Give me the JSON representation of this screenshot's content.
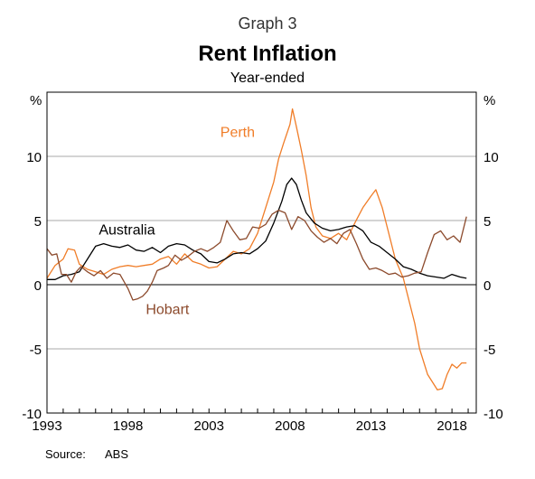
{
  "header": {
    "graph_label": "Graph 3",
    "title": "Rent Inflation",
    "subtitle": "Year-ended"
  },
  "footer": {
    "source_label": "Source:",
    "source_value": "ABS"
  },
  "chart_data": {
    "type": "line",
    "title": "Rent Inflation",
    "subtitle": "Year-ended",
    "y_unit_left": "%",
    "y_unit_right": "%",
    "xlim": [
      1993,
      2019.5
    ],
    "ylim": [
      -10,
      15
    ],
    "x_ticks": [
      1993,
      1998,
      2003,
      2008,
      2013,
      2018
    ],
    "y_ticks": [
      -10,
      -5,
      0,
      5,
      10
    ],
    "grid": true,
    "series": [
      {
        "name": "Perth",
        "color": "#f07d28",
        "points": [
          [
            1993.0,
            0.5
          ],
          [
            1993.5,
            1.5
          ],
          [
            1994.0,
            2.0
          ],
          [
            1994.3,
            2.8
          ],
          [
            1994.7,
            2.7
          ],
          [
            1995.0,
            1.6
          ],
          [
            1995.5,
            1.2
          ],
          [
            1996.0,
            1.0
          ],
          [
            1996.5,
            0.8
          ],
          [
            1997.0,
            1.2
          ],
          [
            1997.5,
            1.4
          ],
          [
            1998.0,
            1.5
          ],
          [
            1998.5,
            1.4
          ],
          [
            1999.0,
            1.5
          ],
          [
            1999.5,
            1.6
          ],
          [
            2000.0,
            2.0
          ],
          [
            2000.5,
            2.2
          ],
          [
            2001.0,
            1.6
          ],
          [
            2001.5,
            2.4
          ],
          [
            2002.0,
            1.8
          ],
          [
            2002.5,
            1.6
          ],
          [
            2003.0,
            1.3
          ],
          [
            2003.5,
            1.4
          ],
          [
            2004.0,
            2.0
          ],
          [
            2004.5,
            2.6
          ],
          [
            2005.0,
            2.4
          ],
          [
            2005.5,
            2.8
          ],
          [
            2006.0,
            4.0
          ],
          [
            2006.5,
            6.0
          ],
          [
            2007.0,
            8.0
          ],
          [
            2007.3,
            9.8
          ],
          [
            2007.6,
            11.0
          ],
          [
            2008.0,
            12.5
          ],
          [
            2008.15,
            13.7
          ],
          [
            2008.4,
            12.3
          ],
          [
            2008.7,
            10.5
          ],
          [
            2009.0,
            8.5
          ],
          [
            2009.3,
            6.0
          ],
          [
            2009.6,
            4.5
          ],
          [
            2010.0,
            3.8
          ],
          [
            2010.5,
            3.6
          ],
          [
            2011.0,
            4.0
          ],
          [
            2011.5,
            3.5
          ],
          [
            2012.0,
            4.8
          ],
          [
            2012.5,
            6.0
          ],
          [
            2013.0,
            6.9
          ],
          [
            2013.3,
            7.4
          ],
          [
            2013.7,
            6.0
          ],
          [
            2014.0,
            4.5
          ],
          [
            2014.5,
            2.0
          ],
          [
            2015.0,
            0.5
          ],
          [
            2015.3,
            -1.0
          ],
          [
            2015.7,
            -3.0
          ],
          [
            2016.0,
            -5.0
          ],
          [
            2016.5,
            -7.0
          ],
          [
            2016.8,
            -7.6
          ],
          [
            2017.1,
            -8.2
          ],
          [
            2017.4,
            -8.1
          ],
          [
            2017.7,
            -7.0
          ],
          [
            2018.0,
            -6.2
          ],
          [
            2018.3,
            -6.5
          ],
          [
            2018.6,
            -6.1
          ],
          [
            2018.9,
            -6.1
          ]
        ]
      },
      {
        "name": "Australia",
        "color": "#000000",
        "points": [
          [
            1993.0,
            0.4
          ],
          [
            1993.5,
            0.4
          ],
          [
            1994.0,
            0.7
          ],
          [
            1994.5,
            0.8
          ],
          [
            1995.0,
            1.0
          ],
          [
            1995.5,
            2.0
          ],
          [
            1996.0,
            3.0
          ],
          [
            1996.5,
            3.2
          ],
          [
            1997.0,
            3.0
          ],
          [
            1997.5,
            2.9
          ],
          [
            1998.0,
            3.1
          ],
          [
            1998.5,
            2.7
          ],
          [
            1999.0,
            2.6
          ],
          [
            1999.5,
            2.9
          ],
          [
            2000.0,
            2.5
          ],
          [
            2000.5,
            3.0
          ],
          [
            2001.0,
            3.2
          ],
          [
            2001.5,
            3.1
          ],
          [
            2002.0,
            2.7
          ],
          [
            2002.5,
            2.4
          ],
          [
            2003.0,
            1.8
          ],
          [
            2003.5,
            1.7
          ],
          [
            2004.0,
            2.0
          ],
          [
            2004.5,
            2.4
          ],
          [
            2005.0,
            2.5
          ],
          [
            2005.5,
            2.4
          ],
          [
            2006.0,
            2.8
          ],
          [
            2006.5,
            3.4
          ],
          [
            2007.0,
            4.8
          ],
          [
            2007.5,
            6.5
          ],
          [
            2007.8,
            7.8
          ],
          [
            2008.1,
            8.3
          ],
          [
            2008.4,
            7.8
          ],
          [
            2008.7,
            6.6
          ],
          [
            2009.0,
            5.6
          ],
          [
            2009.5,
            4.8
          ],
          [
            2010.0,
            4.4
          ],
          [
            2010.5,
            4.2
          ],
          [
            2011.0,
            4.3
          ],
          [
            2011.5,
            4.5
          ],
          [
            2012.0,
            4.6
          ],
          [
            2012.5,
            4.2
          ],
          [
            2013.0,
            3.3
          ],
          [
            2013.5,
            3.0
          ],
          [
            2014.0,
            2.5
          ],
          [
            2014.5,
            2.0
          ],
          [
            2015.0,
            1.4
          ],
          [
            2015.5,
            1.2
          ],
          [
            2016.0,
            0.9
          ],
          [
            2016.5,
            0.7
          ],
          [
            2017.0,
            0.6
          ],
          [
            2017.5,
            0.5
          ],
          [
            2018.0,
            0.8
          ],
          [
            2018.5,
            0.6
          ],
          [
            2018.9,
            0.5
          ]
        ]
      },
      {
        "name": "Hobart",
        "color": "#8c4a2c",
        "points": [
          [
            1993.0,
            2.8
          ],
          [
            1993.3,
            2.3
          ],
          [
            1993.6,
            2.4
          ],
          [
            1993.9,
            0.8
          ],
          [
            1994.2,
            0.8
          ],
          [
            1994.5,
            0.2
          ],
          [
            1994.8,
            1.0
          ],
          [
            1995.1,
            1.4
          ],
          [
            1995.5,
            1.0
          ],
          [
            1995.9,
            0.7
          ],
          [
            1996.3,
            1.1
          ],
          [
            1996.7,
            0.5
          ],
          [
            1997.1,
            0.9
          ],
          [
            1997.5,
            0.8
          ],
          [
            1998.0,
            -0.3
          ],
          [
            1998.3,
            -1.2
          ],
          [
            1998.6,
            -1.1
          ],
          [
            1998.9,
            -0.9
          ],
          [
            1999.2,
            -0.5
          ],
          [
            1999.5,
            0.2
          ],
          [
            1999.8,
            1.1
          ],
          [
            2000.2,
            1.3
          ],
          [
            2000.5,
            1.5
          ],
          [
            2000.9,
            2.3
          ],
          [
            2001.3,
            1.9
          ],
          [
            2001.7,
            2.2
          ],
          [
            2002.1,
            2.6
          ],
          [
            2002.5,
            2.8
          ],
          [
            2002.9,
            2.6
          ],
          [
            2003.3,
            2.9
          ],
          [
            2003.7,
            3.3
          ],
          [
            2004.1,
            5.0
          ],
          [
            2004.5,
            4.2
          ],
          [
            2004.9,
            3.5
          ],
          [
            2005.3,
            3.6
          ],
          [
            2005.7,
            4.5
          ],
          [
            2006.1,
            4.4
          ],
          [
            2006.5,
            4.7
          ],
          [
            2006.9,
            5.5
          ],
          [
            2007.3,
            5.8
          ],
          [
            2007.7,
            5.6
          ],
          [
            2008.1,
            4.3
          ],
          [
            2008.5,
            5.3
          ],
          [
            2008.9,
            5.0
          ],
          [
            2009.3,
            4.2
          ],
          [
            2009.7,
            3.7
          ],
          [
            2010.1,
            3.3
          ],
          [
            2010.5,
            3.6
          ],
          [
            2010.9,
            3.2
          ],
          [
            2011.3,
            4.0
          ],
          [
            2011.7,
            4.3
          ],
          [
            2012.1,
            3.2
          ],
          [
            2012.5,
            2.0
          ],
          [
            2012.9,
            1.2
          ],
          [
            2013.3,
            1.3
          ],
          [
            2013.7,
            1.1
          ],
          [
            2014.1,
            0.8
          ],
          [
            2014.5,
            0.9
          ],
          [
            2014.9,
            0.6
          ],
          [
            2015.3,
            0.7
          ],
          [
            2015.7,
            0.9
          ],
          [
            2016.1,
            1.0
          ],
          [
            2016.5,
            2.5
          ],
          [
            2016.9,
            3.9
          ],
          [
            2017.3,
            4.2
          ],
          [
            2017.7,
            3.5
          ],
          [
            2018.1,
            3.8
          ],
          [
            2018.5,
            3.3
          ],
          [
            2018.9,
            5.3
          ]
        ]
      }
    ],
    "annotations": [
      {
        "text": "Perth",
        "x": 2003.7,
        "y": 11.5,
        "series": "Perth"
      },
      {
        "text": "Australia",
        "x": 1996.2,
        "y": 3.9,
        "series": "Australia"
      },
      {
        "text": "Hobart",
        "x": 1999.1,
        "y": -2.3,
        "series": "Hobart"
      }
    ]
  }
}
